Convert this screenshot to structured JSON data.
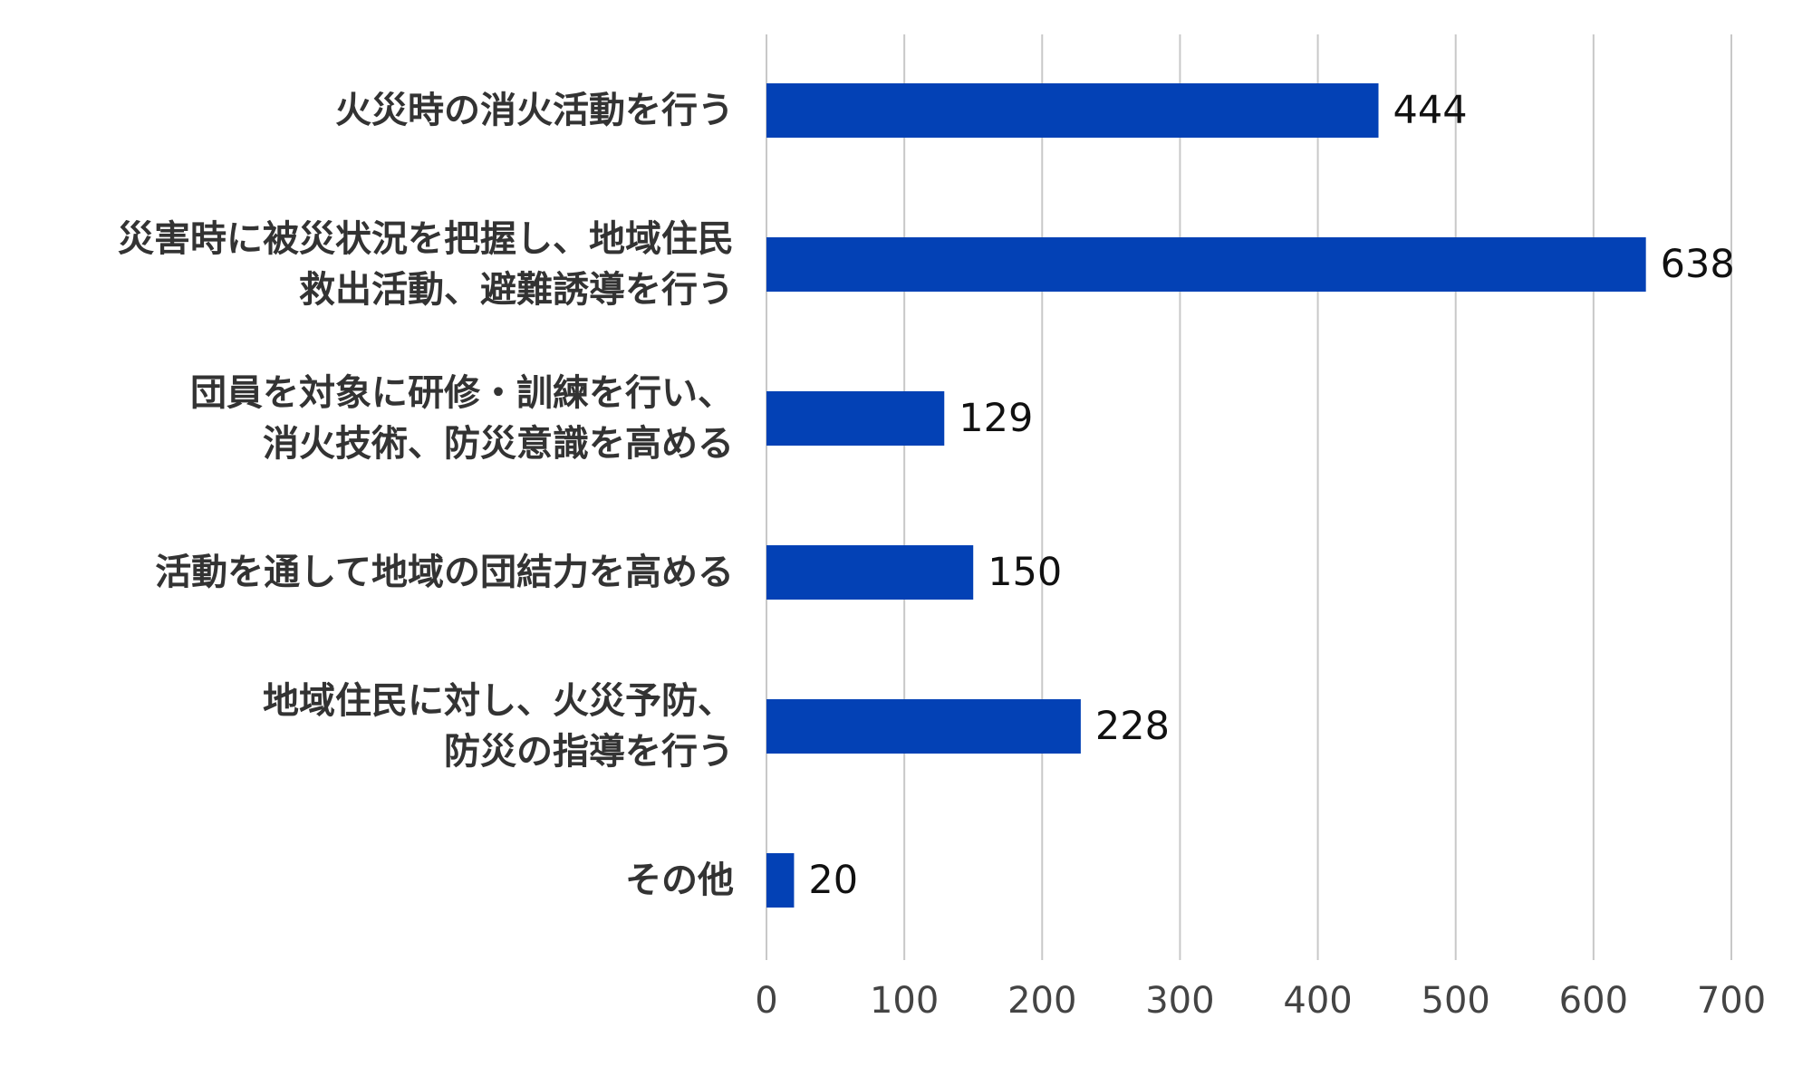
{
  "chart_data": {
    "type": "bar",
    "orientation": "horizontal",
    "categories": [
      [
        "火災時の消火活動を行う"
      ],
      [
        "災害時に被災状況を把握し、地域住民",
        "救出活動、避難誘導を行う"
      ],
      [
        "団員を対象に研修・訓練を行い、",
        "消火技術、防災意識を高める"
      ],
      [
        "活動を通して地域の団結力を高める"
      ],
      [
        "地域住民に対し、火災予防、",
        "防災の指導を行う"
      ],
      [
        "その他"
      ]
    ],
    "values": [
      444,
      638,
      129,
      150,
      228,
      20
    ],
    "value_labels": [
      "444",
      "638",
      "129",
      "150",
      "228",
      "20"
    ],
    "xlim": [
      0,
      700
    ],
    "xticks": [
      "0",
      "100",
      "200",
      "300",
      "400",
      "500",
      "600",
      "700"
    ],
    "grid": true,
    "legend": "none",
    "bar_color": "#0341b5"
  }
}
